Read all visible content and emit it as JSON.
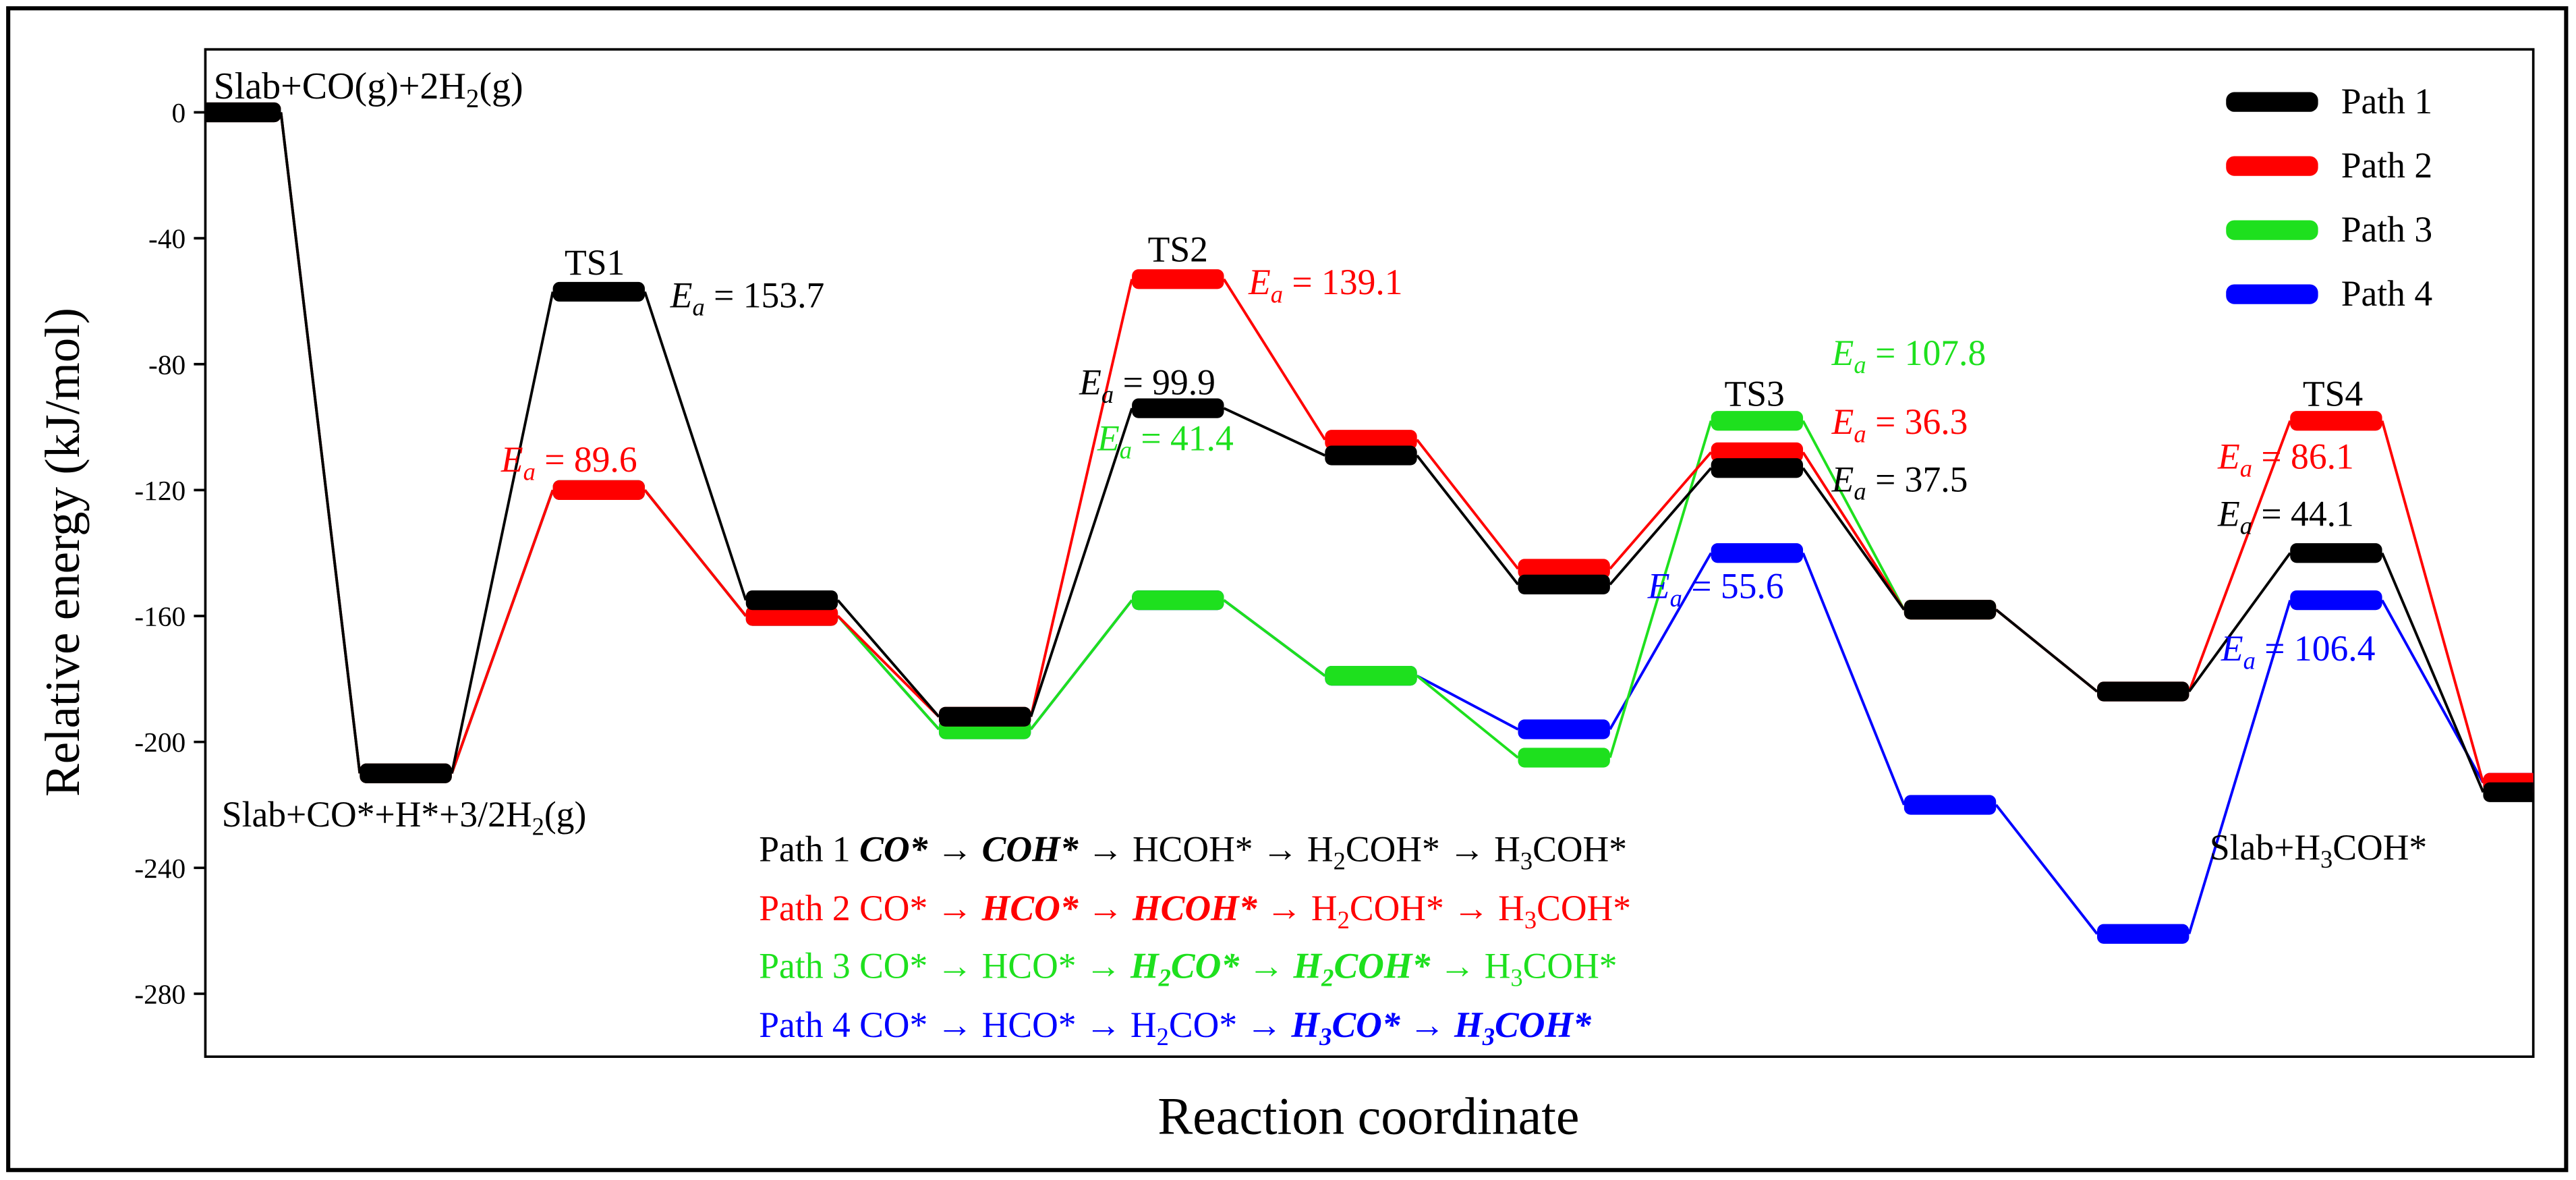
{
  "chart_data": {
    "type": "energy_profile",
    "ylabel": "Relative energy (kJ/mol)",
    "xlabel": "Reaction coordinate",
    "ylim": [
      -300,
      20
    ],
    "yticks": [
      0,
      -40,
      -80,
      -120,
      -160,
      -200,
      -240,
      -280
    ],
    "legend": "upper right",
    "series": [
      {
        "name": "Path 1",
        "color": "#000000",
        "values": [
          0,
          -210,
          -57,
          -155,
          -192,
          -94,
          -109,
          -150,
          -113,
          -158,
          -184,
          -140,
          -216
        ]
      },
      {
        "name": "Path 2",
        "color": "#ff0000",
        "values": [
          0,
          -210,
          -120,
          -160,
          -192,
          -53,
          -104,
          -145,
          -108,
          -158,
          -184,
          -98,
          -213
        ]
      },
      {
        "name": "Path 3",
        "color": "#1ee01e",
        "values": [
          0,
          -210,
          -120,
          -160,
          -196,
          -155,
          -179,
          -205,
          -98,
          -158,
          null,
          null,
          null
        ]
      },
      {
        "name": "Path 4",
        "color": "#0000ff",
        "values": [
          0,
          -210,
          -120,
          -160,
          -196,
          -155,
          -179,
          -196,
          -140,
          -220,
          -261,
          -155,
          -213
        ]
      }
    ],
    "annotations": [
      {
        "color": "#000000",
        "parts": [
          {
            "t": "Slab+CO(g)+2H"
          },
          {
            "t": "2",
            "s": "sub"
          },
          {
            "t": "(g)"
          }
        ]
      },
      {
        "color": "#000000",
        "parts": [
          {
            "t": "Slab+CO*+H*+3/2H"
          },
          {
            "t": "2",
            "s": "sub"
          },
          {
            "t": "(g)"
          }
        ]
      },
      {
        "color": "#000000",
        "parts": [
          {
            "t": "Slab+H"
          },
          {
            "t": "3",
            "s": "sub"
          },
          {
            "t": "COH*"
          }
        ]
      },
      {
        "color": "#000000",
        "parts": [
          {
            "t": "TS1"
          }
        ]
      },
      {
        "color": "#000000",
        "parts": [
          {
            "t": "TS2"
          }
        ]
      },
      {
        "color": "#000000",
        "parts": [
          {
            "t": "TS3"
          }
        ]
      },
      {
        "color": "#000000",
        "parts": [
          {
            "t": "TS4"
          }
        ]
      },
      {
        "color": "#000000",
        "parts": [
          {
            "t": "E",
            "s": "i"
          },
          {
            "t": "a",
            "s": "isub"
          },
          {
            "t": " = 153.7"
          }
        ]
      },
      {
        "color": "#ff0000",
        "parts": [
          {
            "t": "E",
            "s": "i"
          },
          {
            "t": "a",
            "s": "isub"
          },
          {
            "t": " = 89.6"
          }
        ]
      },
      {
        "color": "#ff0000",
        "parts": [
          {
            "t": "E",
            "s": "i"
          },
          {
            "t": "a",
            "s": "isub"
          },
          {
            "t": " = 139.1"
          }
        ]
      },
      {
        "color": "#000000",
        "parts": [
          {
            "t": "E",
            "s": "i"
          },
          {
            "t": "a",
            "s": "isub"
          },
          {
            "t": " = 99.9"
          }
        ]
      },
      {
        "color": "#1ee01e",
        "parts": [
          {
            "t": "E",
            "s": "i"
          },
          {
            "t": "a",
            "s": "isub"
          },
          {
            "t": " = 41.4"
          }
        ]
      },
      {
        "color": "#1ee01e",
        "parts": [
          {
            "t": "E",
            "s": "i"
          },
          {
            "t": "a",
            "s": "isub"
          },
          {
            "t": " = 107.8"
          }
        ]
      },
      {
        "color": "#ff0000",
        "parts": [
          {
            "t": "E",
            "s": "i"
          },
          {
            "t": "a",
            "s": "isub"
          },
          {
            "t": " = 36.3"
          }
        ]
      },
      {
        "color": "#000000",
        "parts": [
          {
            "t": "E",
            "s": "i"
          },
          {
            "t": "a",
            "s": "isub"
          },
          {
            "t": " = 37.5"
          }
        ]
      },
      {
        "color": "#0000ff",
        "parts": [
          {
            "t": "E",
            "s": "i"
          },
          {
            "t": "a",
            "s": "isub"
          },
          {
            "t": " = 55.6"
          }
        ]
      },
      {
        "color": "#ff0000",
        "parts": [
          {
            "t": "E",
            "s": "i"
          },
          {
            "t": "a",
            "s": "isub"
          },
          {
            "t": " = 86.1"
          }
        ]
      },
      {
        "color": "#000000",
        "parts": [
          {
            "t": "E",
            "s": "i"
          },
          {
            "t": "a",
            "s": "isub"
          },
          {
            "t": " = 44.1"
          }
        ]
      },
      {
        "color": "#0000ff",
        "parts": [
          {
            "t": "E",
            "s": "i"
          },
          {
            "t": "a",
            "s": "isub"
          },
          {
            "t": " = 106.4"
          }
        ]
      },
      {
        "color": "#000000",
        "parts": [
          {
            "t": "Path 1 "
          },
          {
            "t": "CO*",
            "s": "bi"
          },
          {
            "t": " → "
          },
          {
            "t": "COH*",
            "s": "bi"
          },
          {
            "t": " → HCOH* → H"
          },
          {
            "t": "2",
            "s": "sub"
          },
          {
            "t": "COH* → H"
          },
          {
            "t": "3",
            "s": "sub"
          },
          {
            "t": "COH*"
          }
        ]
      },
      {
        "color": "#ff0000",
        "parts": [
          {
            "t": "Path 2 CO* → "
          },
          {
            "t": "HCO*",
            "s": "bi"
          },
          {
            "t": " → "
          },
          {
            "t": "HCOH*",
            "s": "bi"
          },
          {
            "t": " → H"
          },
          {
            "t": "2",
            "s": "sub"
          },
          {
            "t": "COH* → H"
          },
          {
            "t": "3",
            "s": "sub"
          },
          {
            "t": "COH*"
          }
        ]
      },
      {
        "color": "#1ee01e",
        "parts": [
          {
            "t": "Path 3 CO* → HCO* → "
          },
          {
            "t": "H",
            "s": "bi"
          },
          {
            "t": "2",
            "s": "bisub"
          },
          {
            "t": "CO*",
            "s": "bi"
          },
          {
            "t": " → "
          },
          {
            "t": "H",
            "s": "bi"
          },
          {
            "t": "2",
            "s": "bisub"
          },
          {
            "t": "COH*",
            "s": "bi"
          },
          {
            "t": " → H"
          },
          {
            "t": "3",
            "s": "sub"
          },
          {
            "t": "COH*"
          }
        ]
      },
      {
        "color": "#0000ff",
        "parts": [
          {
            "t": "Path 4 CO* → HCO* → H"
          },
          {
            "t": "2",
            "s": "sub"
          },
          {
            "t": "CO* → "
          },
          {
            "t": "H",
            "s": "bi"
          },
          {
            "t": "3",
            "s": "bisub"
          },
          {
            "t": "CO*",
            "s": "bi"
          },
          {
            "t": " → "
          },
          {
            "t": "H",
            "s": "bi"
          },
          {
            "t": "3",
            "s": "bisub"
          },
          {
            "t": "COH*",
            "s": "bi"
          }
        ]
      }
    ]
  }
}
